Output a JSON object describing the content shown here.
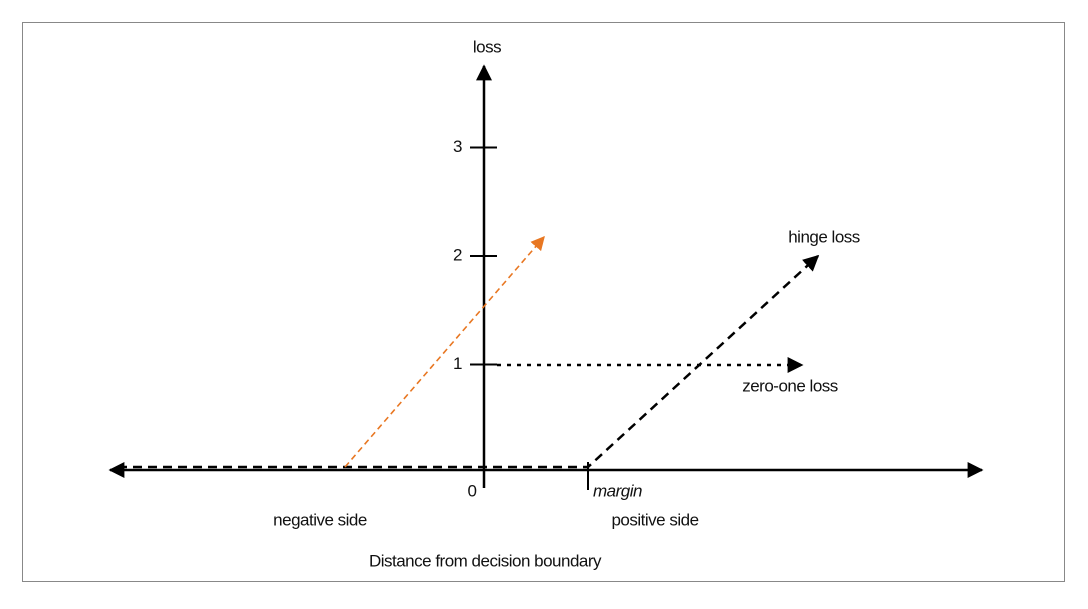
{
  "axes": {
    "y_label": "loss",
    "x_label": "Distance from decision boundary",
    "ticks": [
      "0",
      "1",
      "2",
      "3"
    ]
  },
  "annotations": {
    "margin": "margin",
    "negative_side": "negative side",
    "positive_side": "positive side",
    "hinge_loss": "hinge loss",
    "zero_one_loss": "zero-one loss"
  }
}
